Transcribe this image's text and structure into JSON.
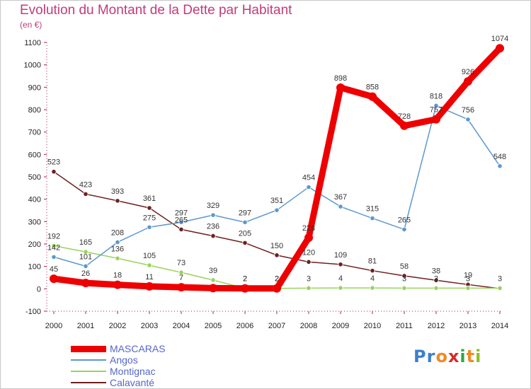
{
  "header": {
    "title": "Evolution du Montant de la Dette par Habitant",
    "unit": "(en €)"
  },
  "logo": {
    "letters": [
      "P",
      "r",
      "o",
      "x",
      "i",
      "t",
      "i"
    ],
    "colors": [
      "#3b7fcf",
      "#3b7fcf",
      "#f08a24",
      "#d62a2a",
      "#2aa845",
      "#f08a24",
      "#8bbf2a"
    ]
  },
  "chart_data": {
    "type": "line",
    "x": [
      2000,
      2001,
      2002,
      2003,
      2004,
      2005,
      2006,
      2007,
      2008,
      2009,
      2010,
      2011,
      2012,
      2013,
      2014
    ],
    "ylim": [
      -100,
      1100
    ],
    "yticks": [
      -100,
      0,
      100,
      200,
      300,
      400,
      500,
      600,
      700,
      800,
      900,
      1000,
      1100
    ],
    "grid": false,
    "legend_position": "bottom-left",
    "series": [
      {
        "name": "Calavanté",
        "color": "#6e1f1f",
        "values": [
          523,
          423,
          393,
          361,
          265,
          236,
          205,
          150,
          120,
          109,
          81,
          58,
          38,
          19,
          1
        ],
        "labels": [
          "523",
          "423",
          "393",
          "361",
          "265",
          "236",
          "205",
          "150",
          "120",
          "109",
          "81",
          "58",
          "38",
          "19",
          ""
        ]
      },
      {
        "name": "Montignac",
        "color": "#99d35a",
        "values": [
          192,
          165,
          136,
          105,
          73,
          39,
          2,
          2,
          3,
          4,
          4,
          3,
          3,
          3,
          3
        ],
        "labels": [
          "192",
          "165",
          "136",
          "105",
          "73",
          "39",
          "2",
          "2",
          "3",
          "4",
          "4",
          "3",
          "3",
          "3",
          "3"
        ]
      },
      {
        "name": "Angos",
        "color": "#5b98cf",
        "values": [
          142,
          101,
          208,
          275,
          297,
          329,
          297,
          351,
          454,
          367,
          315,
          265,
          818,
          756,
          548
        ],
        "labels": [
          "142",
          "101",
          "208",
          "275",
          "297",
          "329",
          "297",
          "351",
          "454",
          "367",
          "315",
          "265",
          "818",
          "756",
          "548"
        ]
      },
      {
        "name": "MASCARAS",
        "color": "#ee0000",
        "values": [
          45,
          26,
          18,
          11,
          7,
          3,
          2,
          2,
          228,
          898,
          858,
          728,
          757,
          926,
          1074
        ],
        "labels": [
          "45",
          "26",
          "18",
          "11",
          "7",
          "",
          "2",
          "2",
          "228",
          "898",
          "858",
          "728",
          "757",
          "926",
          "1074"
        ]
      }
    ]
  }
}
